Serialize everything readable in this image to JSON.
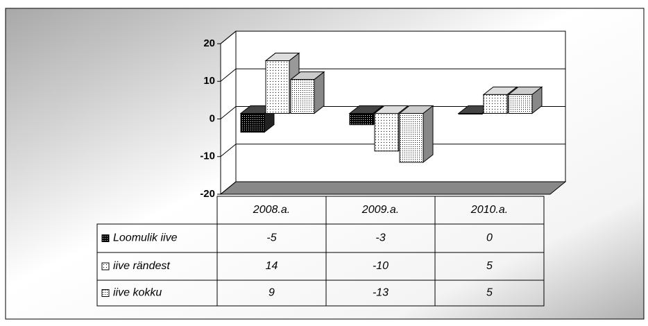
{
  "chart_data": {
    "type": "bar",
    "categories": [
      "2008.a.",
      "2009.a.",
      "2010.a."
    ],
    "series": [
      {
        "name": "Loomulik iive",
        "color": "#000000",
        "values": [
          -5,
          -3,
          0
        ]
      },
      {
        "name": "iive rändest",
        "color": "#ffffff",
        "values": [
          14,
          -10,
          5
        ]
      },
      {
        "name": "iive kokku",
        "color": "#dddddd",
        "values": [
          9,
          -13,
          5
        ]
      }
    ],
    "ylim": [
      -20,
      20
    ],
    "yticks": [
      -20,
      -10,
      0,
      10,
      20
    ],
    "grid": true
  }
}
